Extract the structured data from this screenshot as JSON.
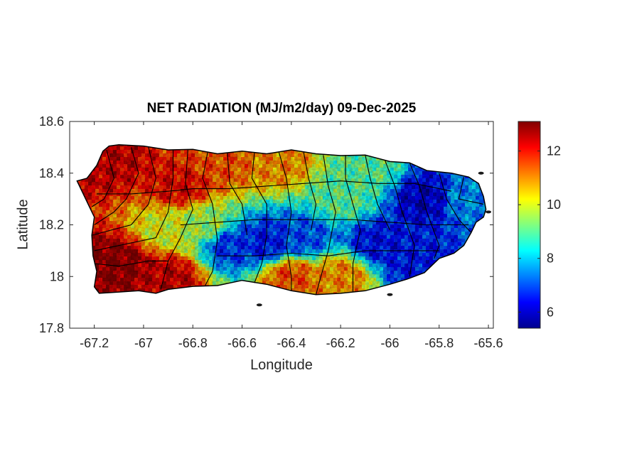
{
  "chart_data": {
    "type": "heatmap",
    "title": "NET RADIATION (MJ/m2/day) 09-Dec-2025",
    "xlabel": "Longitude",
    "ylabel": "Latitude",
    "xlim": [
      -67.3,
      -65.58
    ],
    "ylim": [
      17.8,
      18.6
    ],
    "x_ticks": [
      -67.2,
      -67,
      -66.8,
      -66.6,
      -66.4,
      -66.2,
      -66,
      -65.8,
      -65.6
    ],
    "x_tick_labels": [
      "-67.2",
      "-67",
      "-66.8",
      "-66.6",
      "-66.4",
      "-66.2",
      "-66",
      "-65.8",
      "-65.6"
    ],
    "y_ticks": [
      17.8,
      18,
      18.2,
      18.4,
      18.6
    ],
    "y_tick_labels": [
      "17.8",
      "18",
      "18.2",
      "18.4",
      "18.6"
    ],
    "colormap": "jet",
    "colorbar": {
      "range": [
        5.4,
        13.1
      ],
      "ticks": [
        6,
        8,
        10,
        12
      ],
      "tick_labels": [
        "6",
        "8",
        "10",
        "12"
      ]
    },
    "region": "Puerto Rico (municipality boundaries)",
    "grid": false,
    "notes_values": {
      "west_high": 12.5,
      "southwest_high": 13.0,
      "central_low": 6.5,
      "east_low": 6.0
    }
  },
  "colors": {
    "boundary": "#000000",
    "axes": "#262626",
    "background": "#ffffff"
  }
}
